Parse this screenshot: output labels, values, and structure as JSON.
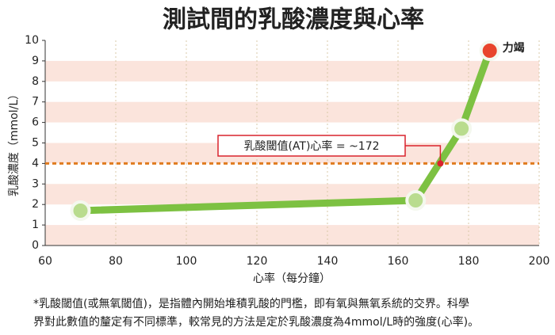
{
  "chart_data": {
    "type": "line",
    "title": "測試間的乳酸濃度與心率",
    "xlabel": "心率（每分鐘）",
    "ylabel": "乳酸濃度（mmol/L）",
    "x": [
      70,
      165,
      178,
      186
    ],
    "series": [
      {
        "color": "#7dc142",
        "values": [
          1.7,
          2.2,
          5.7,
          9.5
        ]
      }
    ],
    "last_point_color": "#e8452c",
    "xlim": [
      60,
      200
    ],
    "xticks": [
      60,
      80,
      100,
      120,
      140,
      160,
      180,
      200
    ],
    "ylim": [
      0,
      10
    ],
    "yticks": [
      0,
      1,
      2,
      3,
      4,
      5,
      6,
      7,
      8,
      9,
      10
    ],
    "grid": true,
    "threshold": {
      "value": 4,
      "color": "#e07b1f"
    },
    "annotations": [
      {
        "text": "乳酸閾值(AT)心率 = ~172",
        "x": 172,
        "y": 4,
        "color": "#d9232d"
      },
      {
        "text": "力竭",
        "x": 186,
        "y": 9.5,
        "color": "#d9232d"
      }
    ]
  },
  "footnote": [
    "*乳酸閾值(或無氧閾值)，是指體內開始堆積乳酸的門檻，即有氧與無氧系統的交界。科學",
    "界對此數值的釐定有不同標準，較常見的方法是定於乳酸濃度為4mmol/L時的強度(心率)。"
  ]
}
